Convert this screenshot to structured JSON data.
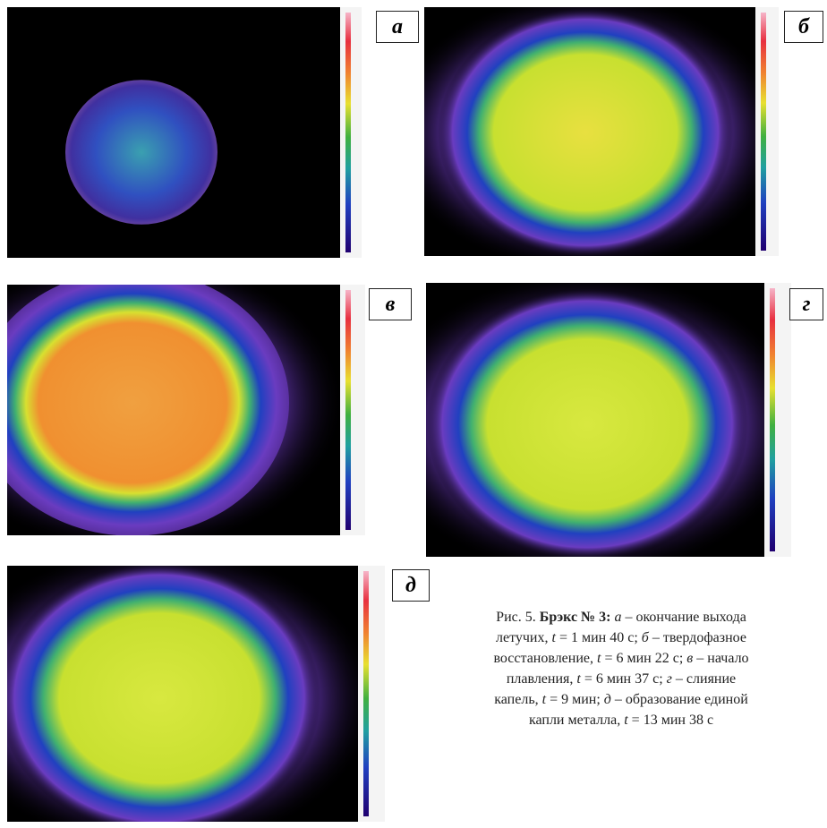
{
  "panels": [
    {
      "label": "а"
    },
    {
      "label": "б"
    },
    {
      "label": "в"
    },
    {
      "label": "г"
    },
    {
      "label": "д"
    }
  ],
  "caption": [
    {
      "text": "Рис. 5. "
    },
    {
      "text": "Брэкс № 3: ",
      "style": "bold"
    },
    {
      "text": "а",
      "style": "italic"
    },
    {
      "text": " – окончание выхода летучих, "
    },
    {
      "text": "t",
      "style": "italic"
    },
    {
      "text": " = 1 мин 40 с; "
    },
    {
      "text": "б",
      "style": "italic"
    },
    {
      "text": " – твердофазное восстановление, "
    },
    {
      "text": "t",
      "style": "italic"
    },
    {
      "text": " = 6 мин 22 с; "
    },
    {
      "text": "в",
      "style": "italic"
    },
    {
      "text": " – начало плавления, "
    },
    {
      "text": "t",
      "style": "italic"
    },
    {
      "text": " = 6 мин 37 с; "
    },
    {
      "text": "г",
      "style": "italic"
    },
    {
      "text": " – слияние капель, "
    },
    {
      "text": "t",
      "style": "italic"
    },
    {
      "text": " = 9 мин; "
    },
    {
      "text": "д",
      "style": "italic"
    },
    {
      "text": " – образование единой капли металла, "
    },
    {
      "text": "t",
      "style": "italic"
    },
    {
      "text": " = 13 мин 38 с"
    }
  ]
}
